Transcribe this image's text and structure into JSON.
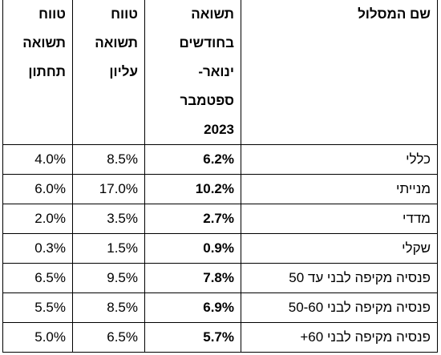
{
  "table": {
    "header": [
      [
        "שם המסלול"
      ],
      [
        "תשואה",
        "בחודשים",
        "ינואר-",
        "ספטמבר",
        "2023"
      ],
      [
        "טווח",
        "תשואה",
        "עליון"
      ],
      [
        "טווח",
        "תשואה",
        "תחתון"
      ]
    ],
    "rows": [
      [
        "כללי",
        "6.2%",
        "8.5%",
        "4.0%"
      ],
      [
        "מנייתי",
        "10.2%",
        "17.0%",
        "6.0%"
      ],
      [
        "מדדי",
        "2.7%",
        "3.5%",
        "2.0%"
      ],
      [
        "שקלי",
        "0.9%",
        "1.5%",
        "0.3%"
      ],
      [
        "פנסיה מקיפה לבני עד 50",
        "7.8%",
        "9.5%",
        "6.5%"
      ],
      [
        "פנסיה מקיפה לבני 50-60",
        "6.9%",
        "8.5%",
        "5.5%"
      ],
      [
        "פנסיה מקיפה לבני 60+",
        "5.7%",
        "6.5%",
        "5.0%"
      ]
    ]
  }
}
